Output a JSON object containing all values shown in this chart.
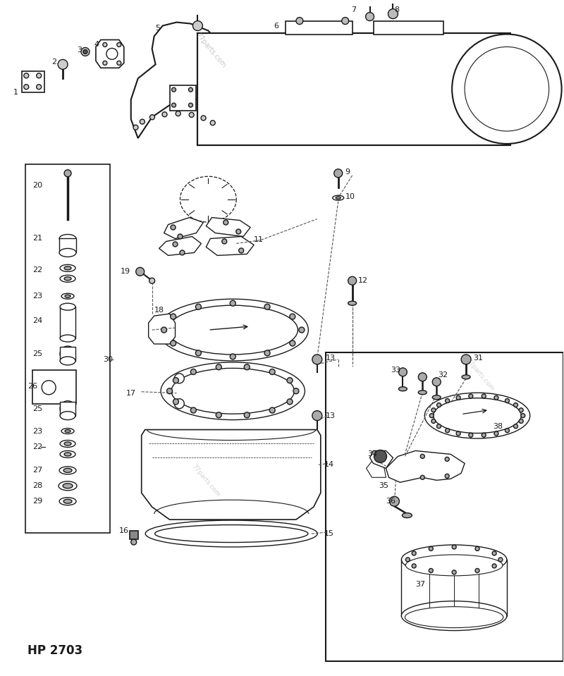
{
  "bg": "#ffffff",
  "lc": "#1a1a1a",
  "title": "HP 2703",
  "wm": "77parts.com"
}
